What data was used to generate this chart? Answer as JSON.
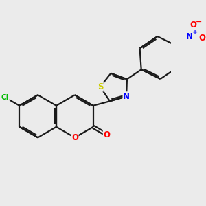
{
  "bg_color": "#ebebeb",
  "bond_color": "#1a1a1a",
  "bond_width": 1.6,
  "atom_colors": {
    "O": "#ff0000",
    "N": "#0000ff",
    "S": "#cccc00",
    "Cl": "#00bb00",
    "C": "#1a1a1a"
  },
  "font_size": 8.5,
  "figsize": [
    3.0,
    3.0
  ],
  "dpi": 100
}
